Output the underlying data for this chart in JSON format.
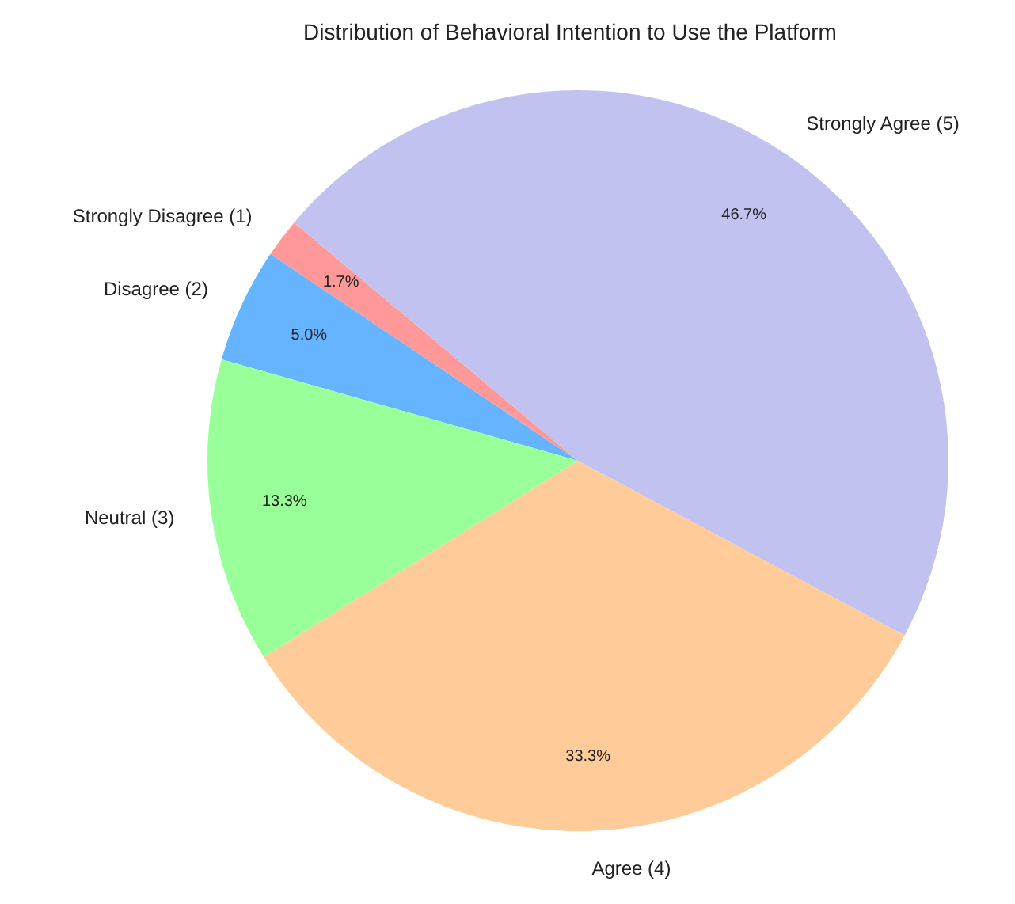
{
  "chart_data": {
    "type": "pie",
    "title": "Distribution of Behavioral Intention to Use the Platform",
    "categories": [
      "Strongly Disagree (1)",
      "Disagree (2)",
      "Neutral (3)",
      "Agree (4)",
      "Strongly Agree (5)"
    ],
    "values": [
      1.7,
      5.0,
      13.3,
      33.3,
      46.7
    ],
    "value_labels": [
      "1.7%",
      "5.0%",
      "13.3%",
      "33.3%",
      "46.7%"
    ],
    "colors": [
      "#ff9999",
      "#66b3ff",
      "#99ff99",
      "#ffcc99",
      "#c2c2f0"
    ],
    "legend": false
  }
}
